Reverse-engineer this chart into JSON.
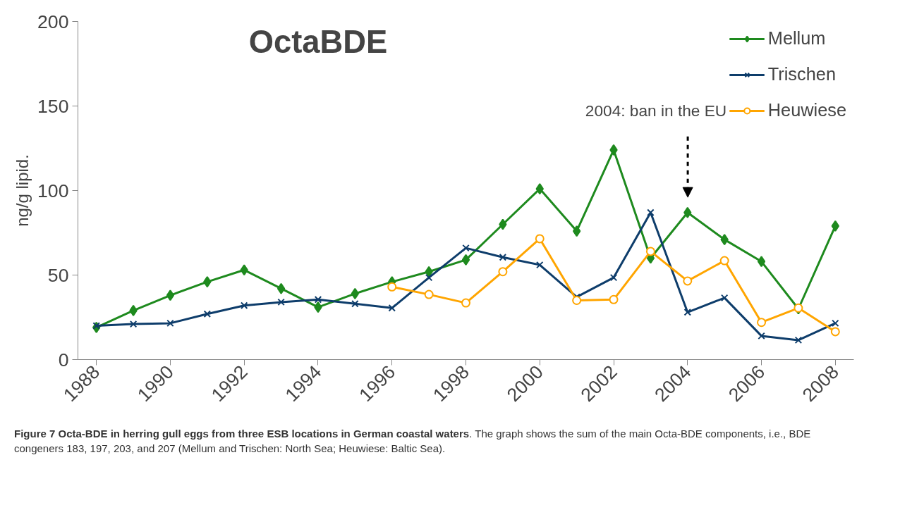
{
  "chart_data": {
    "type": "line",
    "title": "OctaBDE",
    "ylabel": "ng/g lipid.",
    "x": [
      1988,
      1989,
      1990,
      1991,
      1992,
      1993,
      1994,
      1995,
      1996,
      1997,
      1998,
      1999,
      2000,
      2001,
      2002,
      2003,
      2004,
      2005,
      2006,
      2007,
      2008
    ],
    "xlim": [
      1987.5,
      2008.5
    ],
    "xticks": [
      1988,
      1990,
      1992,
      1994,
      1996,
      1998,
      2000,
      2002,
      2004,
      2006,
      2008
    ],
    "ylim": [
      0,
      200
    ],
    "yticks": [
      0,
      50,
      100,
      150,
      200
    ],
    "grid": false,
    "legend": "top right",
    "line_style": "solid",
    "series": [
      {
        "name": "Mellum",
        "color": "#1e8a1e",
        "marker": "diamond",
        "values": [
          19,
          29,
          38,
          46,
          53,
          42,
          31,
          39,
          46,
          52,
          59,
          80,
          101,
          76,
          124,
          60,
          87,
          71,
          58,
          30,
          79
        ]
      },
      {
        "name": "Trischen",
        "color": "#0e3d6b",
        "marker": "cross",
        "values": [
          20,
          21,
          21.5,
          27,
          32,
          34,
          35.5,
          33,
          30.5,
          48.5,
          66,
          60.5,
          56,
          37,
          48.5,
          87,
          28,
          36.5,
          14,
          11.5,
          21.5
        ]
      },
      {
        "name": "Heuwiese",
        "color": "#ffa500",
        "marker": "circle",
        "values": [
          null,
          null,
          null,
          null,
          null,
          null,
          null,
          null,
          43,
          38.5,
          33.5,
          52,
          71.5,
          35,
          35.5,
          64,
          46.5,
          58.5,
          22,
          30.5,
          16.5
        ]
      }
    ],
    "annotations": [
      "2004: ban in the EU",
      "Figure 7 Octa-BDE in herring gull eggs from three ESB locations in German coastal waters",
      ". The graph shows the sum of the main Octa-BDE components, i.e., BDE congeners 183, 197, 203, and 207 (Mellum and Trischen: North Sea; Heuwiese: Baltic Sea)."
    ]
  }
}
